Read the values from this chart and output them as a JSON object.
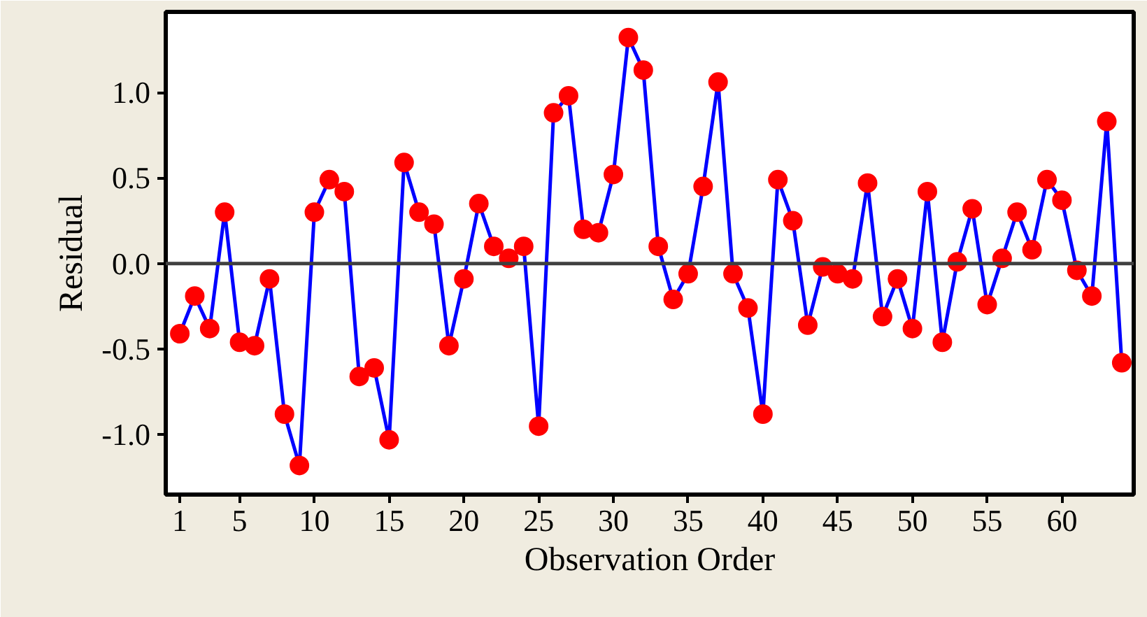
{
  "chart_data": {
    "type": "line",
    "xlabel": "Observation Order",
    "ylabel": "Residual",
    "x": [
      1,
      2,
      3,
      4,
      5,
      6,
      7,
      8,
      9,
      10,
      11,
      12,
      13,
      14,
      15,
      16,
      17,
      18,
      19,
      20,
      21,
      22,
      23,
      24,
      25,
      26,
      27,
      28,
      29,
      30,
      31,
      32,
      33,
      34,
      35,
      36,
      37,
      38,
      39,
      40,
      41,
      42,
      43,
      44,
      45,
      46,
      47,
      48,
      49,
      50,
      51,
      52,
      53,
      54,
      55,
      56,
      57,
      58,
      59,
      60,
      61,
      62,
      63,
      64
    ],
    "series": [
      {
        "color": "#0000ff",
        "values": [
          -0.41,
          -0.19,
          -0.38,
          0.3,
          -0.46,
          -0.48,
          -0.09,
          -0.88,
          -1.18,
          0.3,
          0.49,
          0.42,
          -0.66,
          -0.61,
          -1.03,
          0.59,
          0.3,
          0.23,
          -0.48,
          -0.09,
          0.35,
          0.1,
          0.03,
          0.1,
          -0.95,
          0.88,
          0.98,
          0.2,
          0.18,
          0.52,
          1.32,
          1.13,
          0.1,
          -0.21,
          -0.06,
          0.45,
          1.06,
          -0.06,
          -0.26,
          -0.88,
          0.49,
          0.25,
          -0.36,
          -0.02,
          -0.06,
          -0.09,
          0.47,
          -0.31,
          -0.09,
          -0.38,
          0.42,
          -0.46,
          0.01,
          0.32,
          -0.24,
          0.03,
          0.3,
          0.08,
          0.49,
          0.37,
          -0.04,
          -0.19,
          0.83,
          -0.58
        ],
        "colors": [
          "#ff0000",
          "#ff0000",
          "#ff0000",
          "#ff0000",
          "#ff0000",
          "#ff0000",
          "#ff0000",
          "#ff0000",
          "#ff0000",
          "#ff0000",
          "#ff0000",
          "#ff0000",
          "#ff0000",
          "#ff0000",
          "#ff0000",
          "#ff0000",
          "#ff0000",
          "#ff0000",
          "#ff0000",
          "#ff0000",
          "#ff0000",
          "#ff0000",
          "#ff0000",
          "#ff0000",
          "#ff0000",
          "#ff0000",
          "#ff0000",
          "#ff0000",
          "#ff0000",
          "#ff0000",
          "#ff0000",
          "#ff0000",
          "#ff0000",
          "#ff0000",
          "#ff0000",
          "#ff0000",
          "#ff0000",
          "#ff0000",
          "#ff0000",
          "#ff0000",
          "#ff0000",
          "#ff0000",
          "#ff0000",
          "#ff0000",
          "#ff0000",
          "#ff0000",
          "#ff0000",
          "#ff0000",
          "#ff0000",
          "#ff0000",
          "#ff0000",
          "#ff0000",
          "#ff0000",
          "#ff0000",
          "#ff0000",
          "#ff0000",
          "#ff0000",
          "#ff0000",
          "#ff0000",
          "#ff0000",
          "#ff0000",
          "#ff0000",
          "#ff0000",
          "#ff0000"
        ]
      }
    ],
    "marker": "circle",
    "line_style": "solid",
    "xlim": [
      0.06,
      64.8
    ],
    "ylim": [
      -1.35,
      1.47
    ],
    "xticks": [
      1,
      5,
      10,
      15,
      20,
      25,
      30,
      35,
      40,
      45,
      50,
      55,
      60
    ],
    "yticks": [
      {
        "value": -1.0,
        "label": "-1.0"
      },
      {
        "value": -0.5,
        "label": "-0.5"
      },
      {
        "value": 0.0,
        "label": "0.0"
      },
      {
        "value": 0.5,
        "label": "0.5"
      },
      {
        "value": 1.0,
        "label": "1.0"
      }
    ],
    "ref_lines": [
      {
        "axis": "y",
        "value": 0,
        "label": null,
        "color": "#404040"
      }
    ],
    "grid": false
  }
}
